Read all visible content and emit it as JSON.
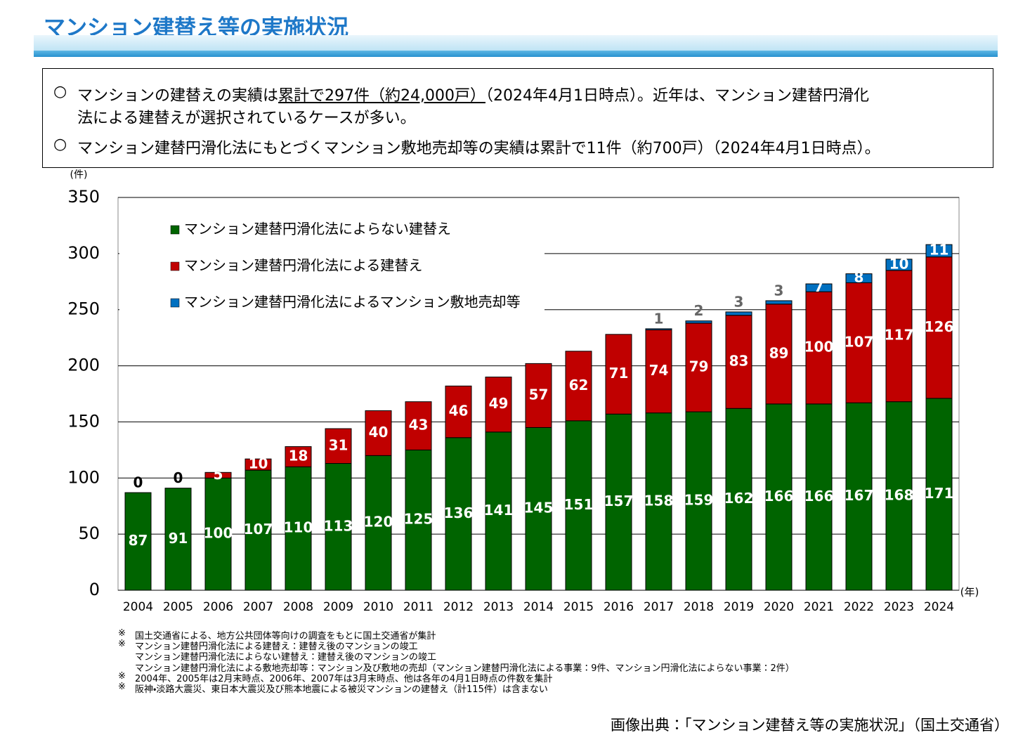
{
  "header": {
    "title": "マンション建替え等の実施状況"
  },
  "bullets": [
    {
      "mark": "○",
      "text_before": "マンションの建替えの実績は",
      "underlined": "累計で297件（約24,000戸）",
      "text_after": "（2024年4月1日時点）。近年は、マンション建替円滑化",
      "continuation": "法による建替えが選択されているケースが多い。"
    },
    {
      "mark": "○",
      "text_before": "マンション建替円滑化法にもとづくマンション敷地売却等の実績は累計で11件（約700戸）（2024年4月1日時点）。"
    }
  ],
  "chart_data": {
    "type": "stacked_bar",
    "y_unit": "(件)",
    "x_unit": "(年)",
    "categories": [
      "2004",
      "2005",
      "2006",
      "2007",
      "2008",
      "2009",
      "2010",
      "2011",
      "2012",
      "2013",
      "2014",
      "2015",
      "2016",
      "2017",
      "2018",
      "2019",
      "2020",
      "2021",
      "2022",
      "2023",
      "2024"
    ],
    "series": [
      {
        "name": "マンション建替円滑化法によらない建替え",
        "color": "#006400",
        "values": [
          87,
          91,
          100,
          107,
          110,
          113,
          120,
          125,
          136,
          141,
          145,
          151,
          157,
          158,
          159,
          162,
          166,
          166,
          167,
          168,
          171
        ]
      },
      {
        "name": "マンション建替円滑化法による建替え",
        "color": "#c00000",
        "values": [
          0,
          0,
          5,
          10,
          18,
          31,
          40,
          43,
          46,
          49,
          57,
          62,
          71,
          74,
          79,
          83,
          89,
          100,
          107,
          117,
          126
        ]
      },
      {
        "name": "マンション建替円滑化法によるマンション敷地売却等",
        "color": "#0070c0",
        "values": [
          null,
          null,
          null,
          null,
          null,
          null,
          null,
          null,
          null,
          null,
          null,
          null,
          null,
          1,
          2,
          3,
          3,
          7,
          8,
          10,
          11
        ]
      }
    ],
    "ylim": [
      0,
      350
    ],
    "yticks": [
      0,
      50,
      100,
      150,
      200,
      250,
      300,
      350
    ],
    "grid": true
  },
  "notes": [
    {
      "mark": "※",
      "text": "国土交通省による、地方公共団体等向けの調査をもとに国土交通省が集計"
    },
    {
      "mark": "※",
      "text": "マンション建替円滑化法による建替え：建替え後のマンションの竣工"
    },
    {
      "text": "マンション建替円滑化法によらない建替え：建替え後のマンションの竣工"
    },
    {
      "text": "マンション建替円滑化法による敷地売却等：マンション及び敷地の売却（マンション建替円滑化法による事業：9件、マンション円滑化法によらない事業：2件）"
    },
    {
      "mark": "※",
      "text": "2004年、2005年は2月末時点、2006年、2007年は3月末時点、他は各年の4月1日時点の件数を集計"
    },
    {
      "mark": "※",
      "text": "阪神・淡路大震災、東日本大震災及び熊本地震による被災マンションの建替え（計115件）は含まない"
    }
  ],
  "source": "画像出典：「マンション建替え等の実施状況」（国土交通省）"
}
